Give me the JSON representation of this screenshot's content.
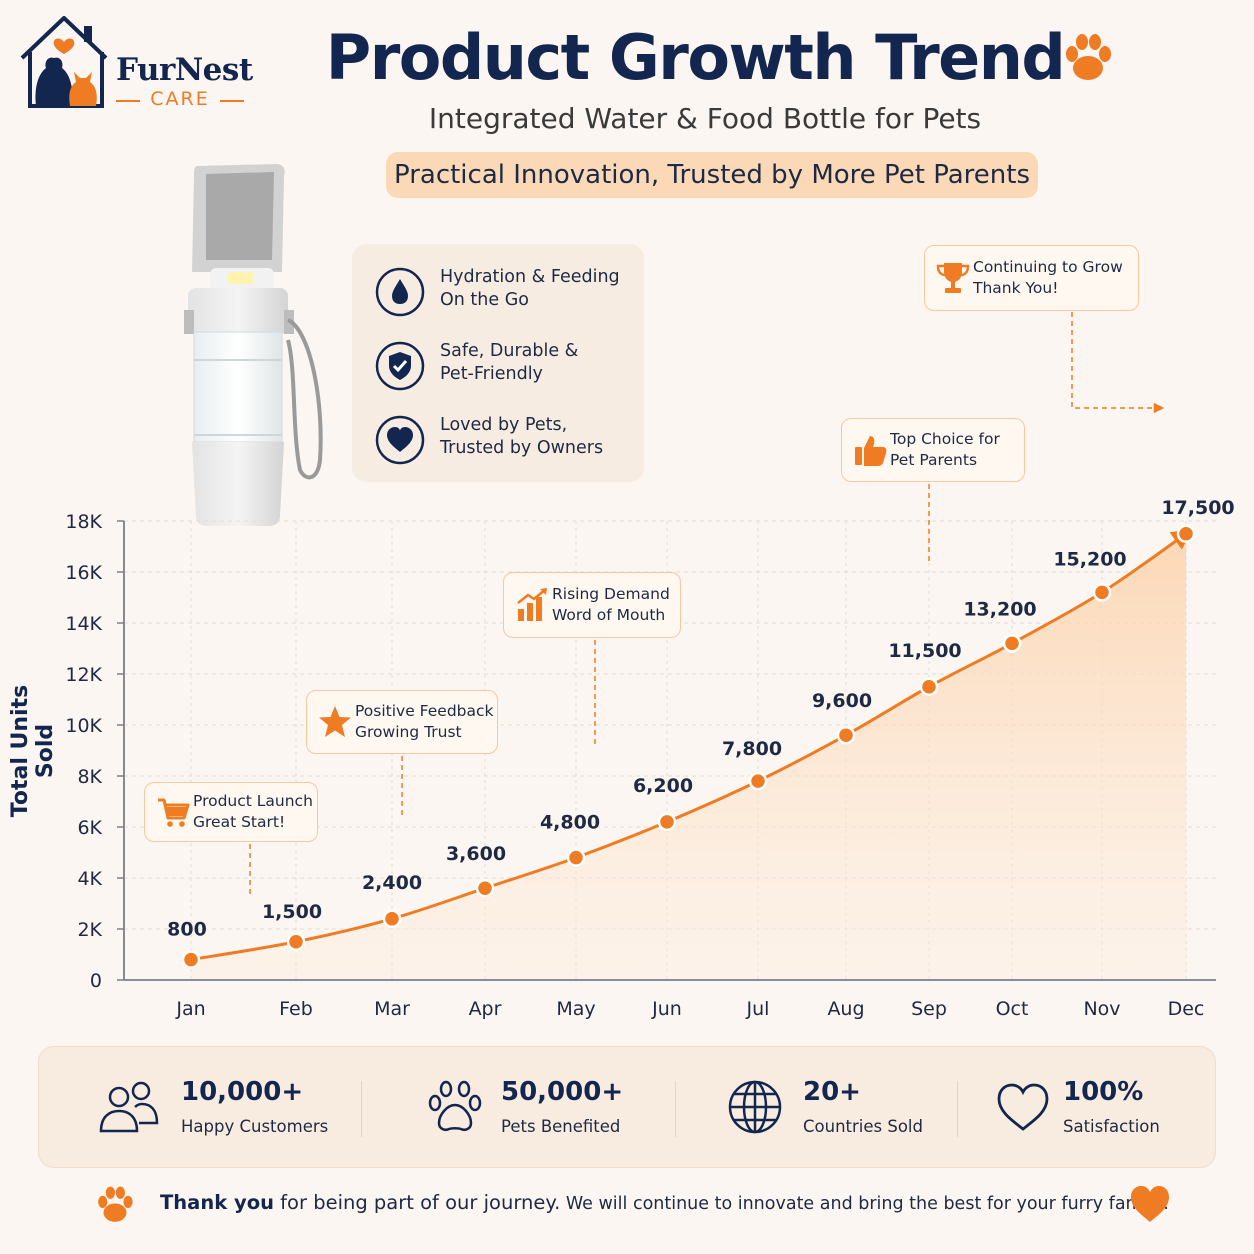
{
  "brand": {
    "name": "FurNest",
    "sub": "CARE"
  },
  "header": {
    "title": "Product Growth Trend",
    "subtitle": "Integrated Water & Food Bottle for Pets",
    "tagline": "Practical Innovation, Trusted by More Pet Parents"
  },
  "features": [
    {
      "icon": "water-drop-icon",
      "line1": "Hydration & Feeding",
      "line2": "On the Go"
    },
    {
      "icon": "shield-check-icon",
      "line1": "Safe, Durable &",
      "line2": "Pet-Friendly"
    },
    {
      "icon": "heart-icon",
      "line1": "Loved by Pets,",
      "line2": "Trusted by Owners"
    }
  ],
  "chart_data": {
    "type": "area",
    "title": "Product Growth Trend",
    "ylabel": "Total Units Sold",
    "xlabel": "",
    "categories": [
      "Jan",
      "Feb",
      "Mar",
      "Apr",
      "May",
      "Jun",
      "Jul",
      "Aug",
      "Sep",
      "Oct",
      "Nov",
      "Dec"
    ],
    "values": [
      800,
      1500,
      2400,
      3600,
      4800,
      6200,
      7800,
      9600,
      11500,
      13200,
      15200,
      17500
    ],
    "value_labels": [
      "800",
      "1,500",
      "2,400",
      "3,600",
      "4,800",
      "6,200",
      "7,800",
      "9,600",
      "11,500",
      "13,200",
      "15,200",
      "17,500"
    ],
    "ylim": [
      0,
      18000
    ],
    "yticks": [
      0,
      2000,
      4000,
      6000,
      8000,
      10000,
      12000,
      14000,
      16000,
      18000
    ],
    "ytick_labels": [
      "0",
      "2K",
      "4K",
      "6K",
      "8K",
      "10K",
      "12K",
      "14K",
      "16K",
      "18K"
    ],
    "grid": true,
    "colors": {
      "line": "#ef7b23",
      "fill": "#fcd9b8"
    },
    "annotations": [
      {
        "month": "Jan",
        "icon": "cart-icon",
        "line1": "Product Launch",
        "line2": "Great Start!"
      },
      {
        "month": "Mar",
        "icon": "star-icon",
        "line1": "Positive Feedback",
        "line2": "Growing Trust"
      },
      {
        "month": "May",
        "icon": "bar-chart-icon",
        "line1": "Rising Demand",
        "line2": "Word of Mouth"
      },
      {
        "month": "Sep",
        "icon": "thumbs-up-icon",
        "line1": "Top Choice for",
        "line2": "Pet Parents"
      },
      {
        "month": "Dec",
        "icon": "trophy-icon",
        "line1": "Continuing to Grow",
        "line2": "Thank You!"
      }
    ]
  },
  "stats": [
    {
      "icon": "users-icon",
      "value": "10,000+",
      "label": "Happy Customers"
    },
    {
      "icon": "paw-icon",
      "value": "50,000+",
      "label": "Pets Benefited"
    },
    {
      "icon": "globe-icon",
      "value": "20+",
      "label": "Countries Sold"
    },
    {
      "icon": "heart-outline-icon",
      "value": "100%",
      "label": "Satisfaction"
    }
  ],
  "footer": {
    "bold": "Thank you",
    "rest": " for being part of our journey.",
    "small": " We will continue to innovate and bring the best for your furry family!"
  },
  "colors": {
    "accent": "#ef7b23",
    "navy": "#13264f",
    "background": "#fbf6f1"
  }
}
